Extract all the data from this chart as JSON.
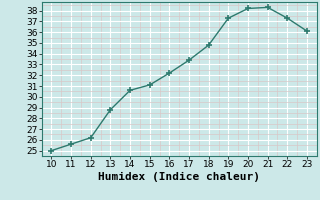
{
  "x": [
    10,
    11,
    12,
    13,
    14,
    15,
    16,
    17,
    18,
    19,
    20,
    21,
    22,
    23
  ],
  "y": [
    25.0,
    25.6,
    26.2,
    28.8,
    30.6,
    31.1,
    32.2,
    33.4,
    34.8,
    37.3,
    38.2,
    38.3,
    37.3,
    36.1
  ],
  "line_color": "#2d7a6e",
  "marker": "+",
  "marker_size": 4,
  "marker_lw": 1.2,
  "bg_color": "#cce8e8",
  "grid_major_color": "#ffffff",
  "grid_minor_color": "#d8c8c8",
  "xlabel": "Humidex (Indice chaleur)",
  "xlim": [
    9.5,
    23.5
  ],
  "ylim": [
    24.5,
    38.8
  ],
  "xticks": [
    10,
    11,
    12,
    13,
    14,
    15,
    16,
    17,
    18,
    19,
    20,
    21,
    22,
    23
  ],
  "yticks": [
    25,
    26,
    27,
    28,
    29,
    30,
    31,
    32,
    33,
    34,
    35,
    36,
    37,
    38
  ],
  "xlabel_fontsize": 8,
  "tick_fontsize": 6.5,
  "line_width": 1.0
}
